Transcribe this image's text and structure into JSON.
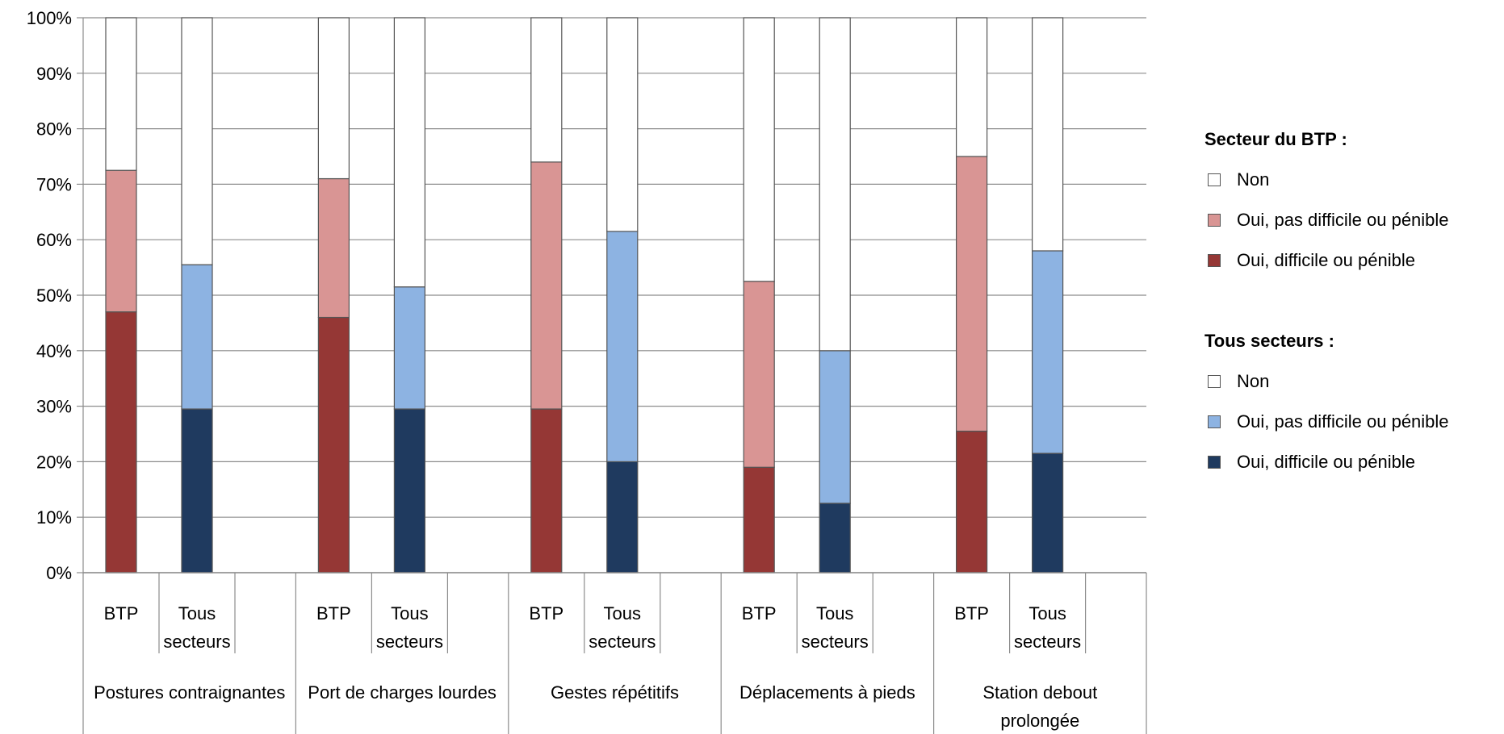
{
  "chart_data": {
    "type": "bar",
    "stacked": true,
    "title": "",
    "xlabel": "",
    "ylabel": "",
    "ylim": [
      0,
      100
    ],
    "y_ticks": [
      "0%",
      "10%",
      "20%",
      "30%",
      "40%",
      "50%",
      "60%",
      "70%",
      "80%",
      "90%",
      "100%"
    ],
    "groups": [
      {
        "name": "Postures contraignantes",
        "bars": [
          {
            "label": "BTP",
            "sector": "btp",
            "values": [
              47,
              25.5,
              27.5
            ]
          },
          {
            "label": "Tous secteurs",
            "sector": "all",
            "values": [
              29.5,
              26,
              44.5
            ]
          }
        ]
      },
      {
        "name": "Port de charges lourdes",
        "bars": [
          {
            "label": "BTP",
            "sector": "btp",
            "values": [
              46,
              25,
              29
            ]
          },
          {
            "label": "Tous secteurs",
            "sector": "all",
            "values": [
              29.5,
              22,
              48.5
            ]
          }
        ]
      },
      {
        "name": "Gestes répétitifs",
        "bars": [
          {
            "label": "BTP",
            "sector": "btp",
            "values": [
              29.5,
              44.5,
              26
            ]
          },
          {
            "label": "Tous secteurs",
            "sector": "all",
            "values": [
              20,
              41.5,
              38.5
            ]
          }
        ]
      },
      {
        "name": "Déplacements à pieds",
        "bars": [
          {
            "label": "BTP",
            "sector": "btp",
            "values": [
              19,
              33.5,
              47.5
            ]
          },
          {
            "label": "Tous secteurs",
            "sector": "all",
            "values": [
              12.5,
              27.5,
              60
            ]
          }
        ]
      },
      {
        "name": "Station debout prolongée",
        "bars": [
          {
            "label": "BTP",
            "sector": "btp",
            "values": [
              25.5,
              49.5,
              25
            ]
          },
          {
            "label": "Tous secteurs",
            "sector": "all",
            "values": [
              21.5,
              36.5,
              42
            ]
          }
        ]
      }
    ],
    "series_order": [
      "Oui, difficile ou pénible",
      "Oui,  pas difficile ou pénible",
      "Non"
    ],
    "colors": {
      "btp": [
        "#953735",
        "#d99594",
        "#ffffff"
      ],
      "all": [
        "#1f3a5f",
        "#8db3e2",
        "#ffffff"
      ]
    },
    "grid": true
  },
  "legend": {
    "btp_title": "Secteur du BTP :",
    "btp_items": [
      "Non",
      "Oui,  pas difficile ou pénible",
      "Oui, difficile ou pénible"
    ],
    "all_title": "Tous secteurs :",
    "all_items": [
      "Non",
      "Oui,  pas difficile ou pénible",
      "Oui, difficile ou pénible"
    ],
    "position": "right"
  }
}
